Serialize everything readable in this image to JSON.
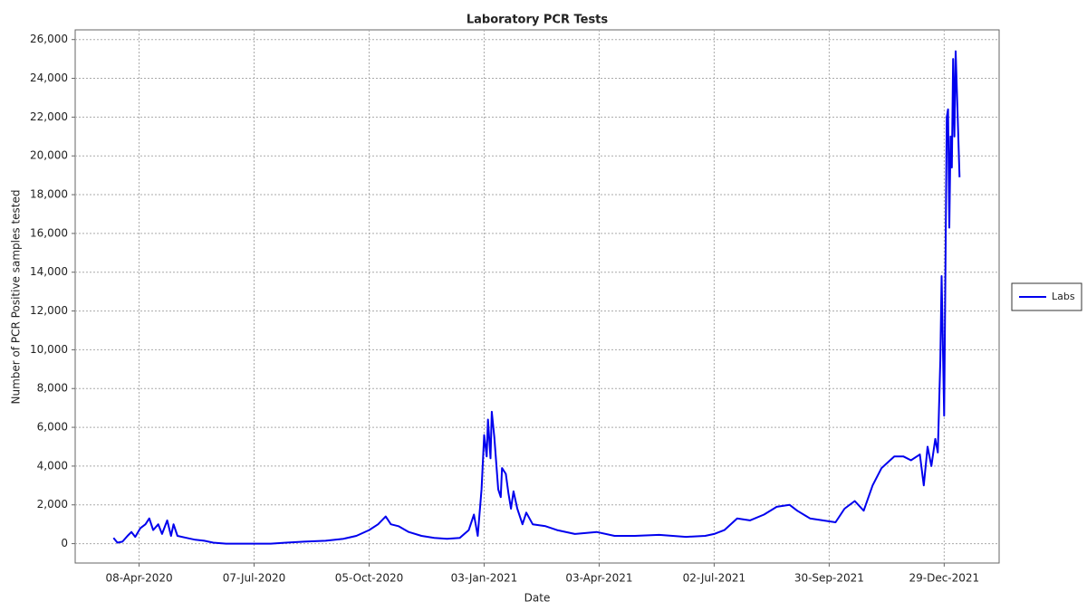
{
  "chart_data": {
    "type": "line",
    "title": "Laboratory PCR Tests",
    "xlabel": "Date",
    "ylabel": "Number of PCR Positive samples tested",
    "x": [
      "2020-03-19",
      "2020-03-22",
      "2020-03-26",
      "2020-03-30",
      "2020-04-02",
      "2020-04-05",
      "2020-04-09",
      "2020-04-13",
      "2020-04-16",
      "2020-04-19",
      "2020-04-23",
      "2020-04-26",
      "2020-04-30",
      "2020-05-03",
      "2020-05-05",
      "2020-05-08",
      "2020-05-15",
      "2020-05-22",
      "2020-05-29",
      "2020-06-05",
      "2020-06-15",
      "2020-07-01",
      "2020-07-20",
      "2020-08-01",
      "2020-08-15",
      "2020-09-01",
      "2020-09-15",
      "2020-09-25",
      "2020-10-05",
      "2020-10-12",
      "2020-10-18",
      "2020-10-22",
      "2020-10-28",
      "2020-11-05",
      "2020-11-15",
      "2020-11-25",
      "2020-12-05",
      "2020-12-15",
      "2020-12-22",
      "2020-12-26",
      "2020-12-29",
      "2021-01-01",
      "2021-01-03",
      "2021-01-05",
      "2021-01-06",
      "2021-01-08",
      "2021-01-09",
      "2021-01-11",
      "2021-01-14",
      "2021-01-16",
      "2021-01-17",
      "2021-01-20",
      "2021-01-22",
      "2021-01-24",
      "2021-01-26",
      "2021-01-29",
      "2021-02-02",
      "2021-02-05",
      "2021-02-10",
      "2021-02-20",
      "2021-03-01",
      "2021-03-15",
      "2021-04-01",
      "2021-04-15",
      "2021-05-01",
      "2021-05-20",
      "2021-06-10",
      "2021-06-25",
      "2021-07-02",
      "2021-07-10",
      "2021-07-20",
      "2021-07-30",
      "2021-08-10",
      "2021-08-20",
      "2021-08-30",
      "2021-09-05",
      "2021-09-15",
      "2021-09-25",
      "2021-10-05",
      "2021-10-12",
      "2021-10-20",
      "2021-10-27",
      "2021-11-03",
      "2021-11-10",
      "2021-11-20",
      "2021-11-27",
      "2021-12-03",
      "2021-12-10",
      "2021-12-13",
      "2021-12-16",
      "2021-12-19",
      "2021-12-22",
      "2021-12-24",
      "2021-12-26",
      "2021-12-27",
      "2021-12-29",
      "2021-12-31",
      "2022-01-01",
      "2022-01-02",
      "2022-01-03",
      "2022-01-04",
      "2022-01-05",
      "2022-01-06",
      "2022-01-07",
      "2022-01-08",
      "2022-01-10"
    ],
    "series": [
      {
        "name": "Labs",
        "color": "#0000ee",
        "values": [
          300,
          50,
          100,
          400,
          600,
          350,
          800,
          1000,
          1300,
          700,
          1000,
          500,
          1200,
          400,
          1000,
          400,
          300,
          200,
          150,
          50,
          0,
          0,
          0,
          50,
          100,
          150,
          250,
          400,
          700,
          1000,
          1400,
          1000,
          900,
          600,
          400,
          300,
          250,
          300,
          700,
          1500,
          400,
          2800,
          5600,
          4500,
          6400,
          4400,
          6800,
          5500,
          2800,
          2400,
          3900,
          3600,
          2600,
          1800,
          2700,
          1800,
          1000,
          1600,
          1000,
          900,
          700,
          500,
          600,
          400,
          400,
          450,
          350,
          400,
          500,
          700,
          1300,
          1200,
          1500,
          1900,
          2000,
          1700,
          1300,
          1200,
          1100,
          1800,
          2200,
          1700,
          3000,
          3900,
          4500,
          4500,
          4300,
          4600,
          3000,
          5000,
          4000,
          5400,
          4700,
          9500,
          13800,
          6600,
          22000,
          22400,
          16300,
          21000,
          19400,
          25000,
          21000,
          25400,
          23300,
          18900
        ]
      }
    ],
    "xlim": [
      "2020-02-18",
      "2022-02-10"
    ],
    "xticks": [
      {
        "value": "2020-04-08",
        "label": "08-Apr-2020"
      },
      {
        "value": "2020-07-07",
        "label": "07-Jul-2020"
      },
      {
        "value": "2020-10-05",
        "label": "05-Oct-2020"
      },
      {
        "value": "2021-01-03",
        "label": "03-Jan-2021"
      },
      {
        "value": "2021-04-03",
        "label": "03-Apr-2021"
      },
      {
        "value": "2021-07-02",
        "label": "02-Jul-2021"
      },
      {
        "value": "2021-09-30",
        "label": "30-Sep-2021"
      },
      {
        "value": "2021-12-29",
        "label": "29-Dec-2021"
      }
    ],
    "ylim": [
      -1000,
      26500
    ],
    "yticks": [
      0,
      {
        "value": 2000,
        "label": "2,000"
      },
      {
        "value": 4000,
        "label": "4,000"
      },
      {
        "value": 6000,
        "label": "6,000"
      },
      {
        "value": 8000,
        "label": "8,000"
      },
      {
        "value": 10000,
        "label": "10,000"
      },
      {
        "value": 12000,
        "label": "12,000"
      },
      {
        "value": 14000,
        "label": "14,000"
      },
      {
        "value": 16000,
        "label": "16,000"
      },
      {
        "value": 18000,
        "label": "18,000"
      },
      {
        "value": 20000,
        "label": "20,000"
      },
      {
        "value": 22000,
        "label": "22,000"
      },
      {
        "value": 24000,
        "label": "24,000"
      },
      {
        "value": 26000,
        "label": "26,000"
      }
    ],
    "grid": true,
    "legend": "right"
  }
}
